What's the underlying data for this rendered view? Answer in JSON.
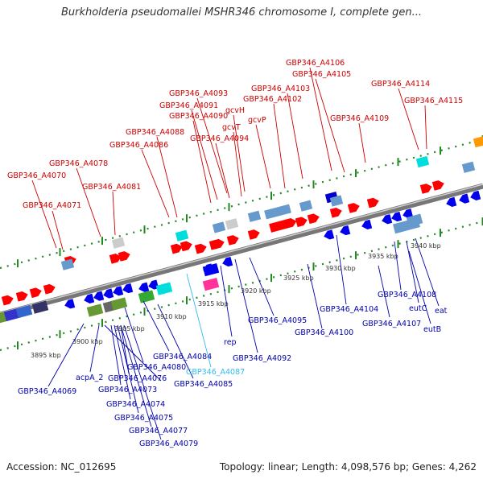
{
  "title": "Burkholderia pseudomallei MSHR346 chromosome I, complete gen...",
  "footer": {
    "accession": "Accession: NC_012695",
    "summary": "Topology: linear; Length: 4,098,576 bp; Genes: 4,262"
  },
  "colors": {
    "label_top": "#cc0000",
    "label_bottom": "#0000aa",
    "label_highlight": "#33bbee",
    "forward_gene": "#ff0000",
    "reverse_gene": "#0000ee",
    "axis": "#888888",
    "ticks": "#228822"
  },
  "scale_labels": [
    "3895 kbp",
    "3900 kbp",
    "3905 kbp",
    "3910 kbp",
    "3915 kbp",
    "3920 kbp",
    "3925 kbp",
    "3930 kbp",
    "3935 kbp",
    "3940 kbp"
  ],
  "top_labels": [
    "GBP346_A4106",
    "GBP346_A4105",
    "GBP346_A4103",
    "GBP346_A4114",
    "GBP346_A4093",
    "GBP346_A4115",
    "GBP346_A4091",
    "GBP346_A4102",
    "GBP346_A4090",
    "gcvH",
    "GBP346_A4109",
    "gcvT",
    "gcvP",
    "GBP346_A4088",
    "GBP346_A4094",
    "GBP346_A4086",
    "GBP346_A4078",
    "GBP346_A4070",
    "GBP346_A4081",
    "GBP346_A4071"
  ],
  "bottom_labels": [
    "GBP346_A4104",
    "GBP346_A4108",
    "eutC",
    "eat",
    "GBP346_A4107",
    "eutB",
    "GBP346_A4095",
    "GBP346_A4100",
    "rep",
    "GBP346_A4092",
    "GBP346_A4084",
    "GBP346_A4080",
    "GBP346_A4087",
    "acpA_2",
    "GBP346_A4076",
    "GBP346_A4085",
    "GBP346_A4069",
    "GBP346_A4073",
    "GBP346_A4074",
    "GBP346_A4075",
    "GBP346_A4077",
    "GBP346_A4079"
  ]
}
